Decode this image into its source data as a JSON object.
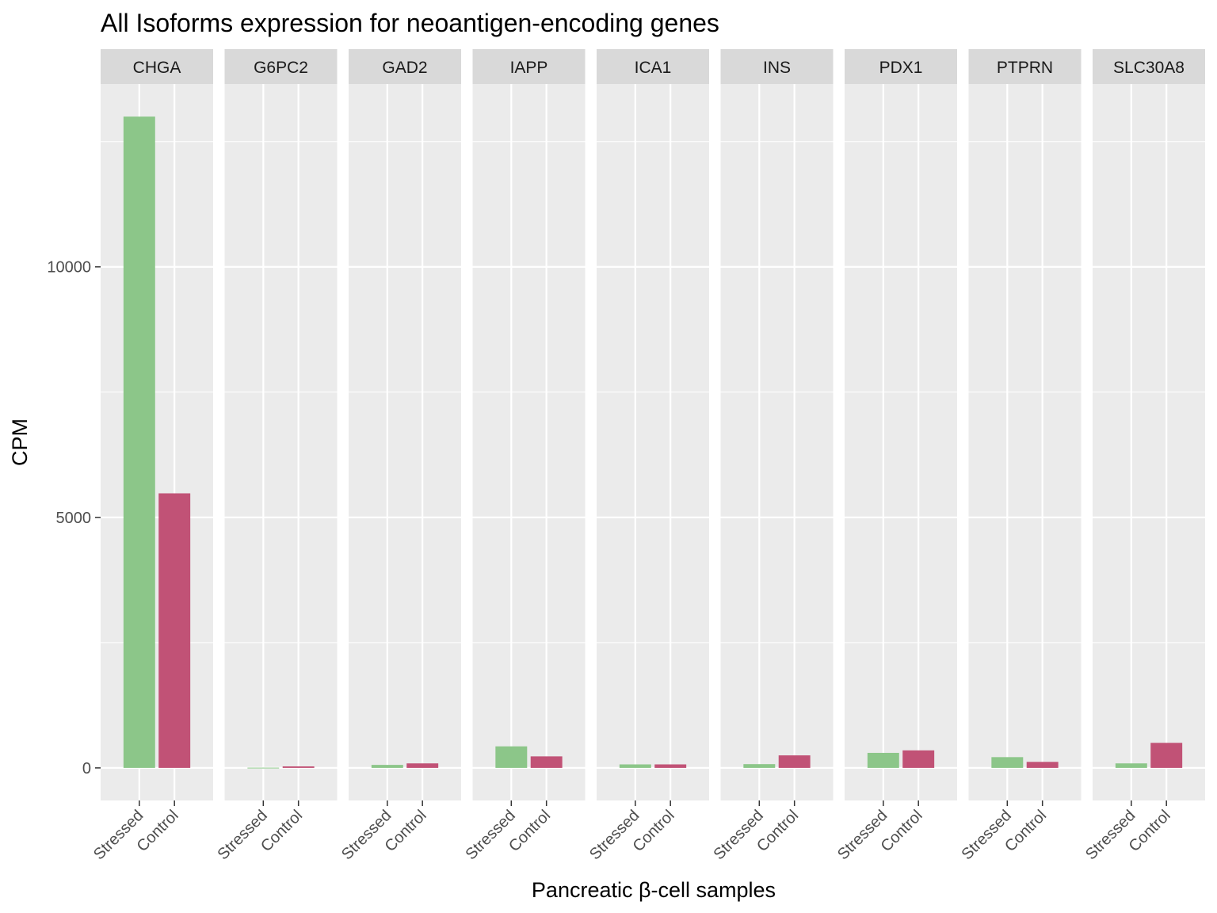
{
  "chart_data": {
    "type": "bar",
    "title": "All Isoforms expression for neoantigen-encoding genes",
    "xlabel": "Pancreatic β-cell samples",
    "ylabel": "CPM",
    "categories": [
      "Stressed",
      "Control"
    ],
    "facets": [
      "CHGA",
      "G6PC2",
      "GAD2",
      "IAPP",
      "ICA1",
      "INS",
      "PDX1",
      "PTPRN",
      "SLC30A8"
    ],
    "values": {
      "CHGA": {
        "Stressed": 13000,
        "Control": 5480
      },
      "G6PC2": {
        "Stressed": 5,
        "Control": 30
      },
      "GAD2": {
        "Stressed": 60,
        "Control": 90
      },
      "IAPP": {
        "Stressed": 430,
        "Control": 230
      },
      "ICA1": {
        "Stressed": 70,
        "Control": 70
      },
      "INS": {
        "Stressed": 75,
        "Control": 250
      },
      "PDX1": {
        "Stressed": 300,
        "Control": 350
      },
      "PTPRN": {
        "Stressed": 215,
        "Control": 120
      },
      "SLC30A8": {
        "Stressed": 90,
        "Control": 500
      }
    },
    "yticks": [
      0,
      5000,
      10000
    ],
    "ylim": [
      -650,
      13650
    ],
    "grid": true,
    "legend": "none",
    "colors": {
      "Stressed": "#8cc689",
      "Control": "#c15276"
    }
  }
}
